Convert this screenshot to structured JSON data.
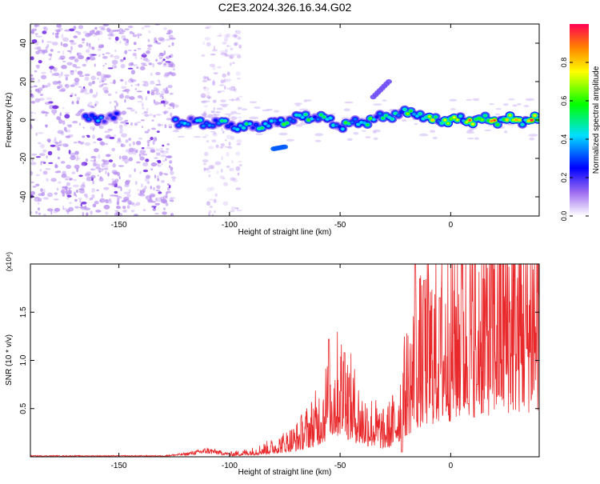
{
  "title": "C2E3.2024.326.16.34.G02",
  "chart_data": [
    {
      "type": "heatmap",
      "xlabel": "Height of straight line (km)",
      "ylabel": "Frequency (Hz)",
      "xlim": [
        -190,
        40
      ],
      "ylim": [
        -50,
        50
      ],
      "xticks": [
        -150,
        -100,
        -50,
        0
      ],
      "yticks": [
        -40,
        -20,
        0,
        20,
        40
      ],
      "colorbar": {
        "label": "Normalized spectral amplitude",
        "range": [
          0.0,
          1.0
        ],
        "ticks": [
          0.0,
          0.2,
          0.4,
          0.6,
          0.8
        ],
        "tick_labels": [
          "0.0",
          "0.2",
          "0.4",
          "0.6",
          "0.8"
        ],
        "colors": [
          "#ffffff",
          "#8a2be2",
          "#0000ff",
          "#00ffff",
          "#00ff00",
          "#ffff00",
          "#ff0000"
        ]
      },
      "ridge": [
        [
          -162,
          0.5
        ],
        [
          -155,
          1.5
        ],
        [
          -120,
          -1
        ],
        [
          -100,
          -2
        ],
        [
          -95,
          -4
        ],
        [
          -80,
          -2
        ],
        [
          -70,
          1
        ],
        [
          -60,
          2
        ],
        [
          -50,
          -3
        ],
        [
          -40,
          -1
        ],
        [
          -25,
          3
        ],
        [
          -15,
          4
        ],
        [
          -10,
          0
        ],
        [
          0,
          0
        ],
        [
          20,
          0
        ],
        [
          40,
          0
        ]
      ],
      "ridge_amplitude": [
        [
          -162,
          0.45
        ],
        [
          -155,
          0.3
        ],
        [
          -120,
          0.45
        ],
        [
          -100,
          0.5
        ],
        [
          -95,
          0.55
        ],
        [
          -80,
          0.55
        ],
        [
          -70,
          0.6
        ],
        [
          -60,
          0.6
        ],
        [
          -50,
          0.55
        ],
        [
          -40,
          0.6
        ],
        [
          -25,
          0.6
        ],
        [
          -15,
          0.65
        ],
        [
          -10,
          0.75
        ],
        [
          0,
          0.85
        ],
        [
          20,
          0.9
        ],
        [
          40,
          0.95
        ]
      ],
      "side_features": [
        {
          "x": [
            -80,
            -75
          ],
          "y": [
            -15,
            -14
          ],
          "amp": 0.4
        },
        {
          "x": [
            -35,
            -28
          ],
          "y": [
            12,
            20
          ],
          "amp": 0.2
        }
      ],
      "noise_regions": [
        {
          "x": [
            -190,
            -125
          ],
          "y": [
            -50,
            50
          ],
          "amp": 0.2
        },
        {
          "x": [
            -112,
            -95
          ],
          "y": [
            -50,
            50
          ],
          "amp": 0.1
        }
      ]
    },
    {
      "type": "line",
      "xlabel": "Height of straight line (km)",
      "ylabel": "SNR (10 * v/v)",
      "ylabel_multiplier": "(x10⁴)",
      "xlim": [
        -190,
        40
      ],
      "ylim": [
        0,
        2.0
      ],
      "xticks": [
        -150,
        -100,
        -50,
        0
      ],
      "yticks": [
        0.5,
        1.0,
        1.5
      ],
      "ytick_labels": [
        "0.5",
        "1.0",
        "1.5"
      ],
      "color": "#e8282a",
      "envelope": [
        [
          -190,
          0.01
        ],
        [
          -130,
          0.01
        ],
        [
          -120,
          0.03
        ],
        [
          -110,
          0.07
        ],
        [
          -100,
          0.03
        ],
        [
          -90,
          0.06
        ],
        [
          -80,
          0.12
        ],
        [
          -70,
          0.22
        ],
        [
          -60,
          0.45
        ],
        [
          -55,
          0.7
        ],
        [
          -50,
          0.85
        ],
        [
          -45,
          0.65
        ],
        [
          -40,
          0.45
        ],
        [
          -35,
          0.4
        ],
        [
          -30,
          0.3
        ],
        [
          -25,
          0.45
        ],
        [
          -20,
          0.85
        ],
        [
          -15,
          1.15
        ],
        [
          -10,
          1.3
        ],
        [
          -5,
          1.35
        ],
        [
          0,
          1.45
        ],
        [
          5,
          1.55
        ],
        [
          10,
          1.62
        ],
        [
          20,
          1.72
        ],
        [
          30,
          1.8
        ],
        [
          40,
          1.83
        ]
      ],
      "spikes": [
        [
          -55,
          1.22
        ],
        [
          -48,
          1.08
        ],
        [
          -16,
          2.0
        ],
        [
          -12,
          1.83
        ],
        [
          -5,
          1.65
        ],
        [
          5,
          2.0
        ],
        [
          8,
          0.55
        ],
        [
          12,
          0.75
        ],
        [
          -22,
          0.05
        ]
      ]
    }
  ]
}
